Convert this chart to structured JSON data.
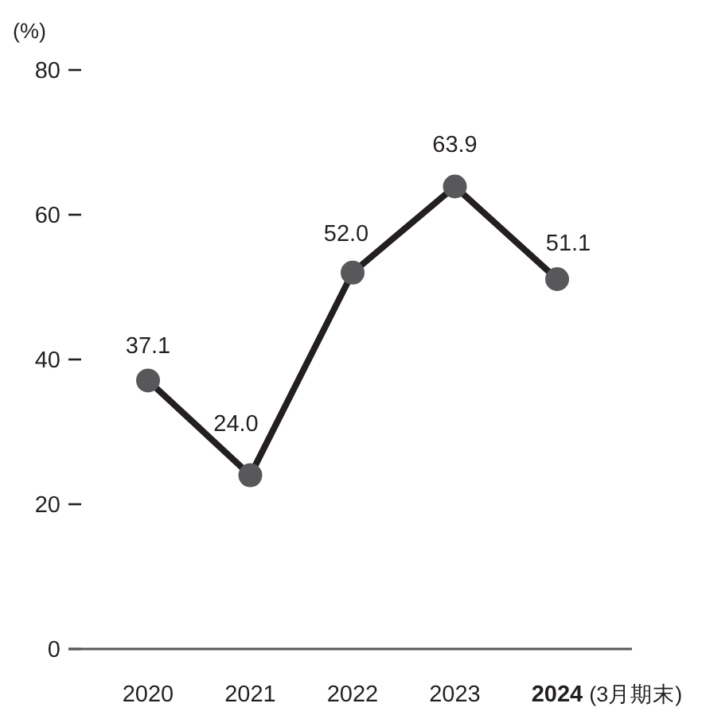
{
  "chart_data": {
    "type": "line",
    "xlabel": "(3月期末)",
    "ylabel": "(%)",
    "categories": [
      "2020",
      "2021",
      "2022",
      "2023",
      "2024"
    ],
    "series": [
      {
        "color": "#231f20",
        "colors": [
          "#58585a",
          "#58585a",
          "#58585a",
          "#58585a",
          "#58585a"
        ],
        "values": [
          37.1,
          24.0,
          52.0,
          63.9,
          51.1
        ],
        "value_labels": [
          "37.1",
          "24.0",
          "52.0",
          "63.9",
          "51.1"
        ]
      }
    ],
    "ylim": [
      0,
      80
    ],
    "yticks": [
      0,
      20,
      40,
      60,
      80
    ],
    "marker": "circle",
    "line_style": "solid",
    "grid": false
  }
}
